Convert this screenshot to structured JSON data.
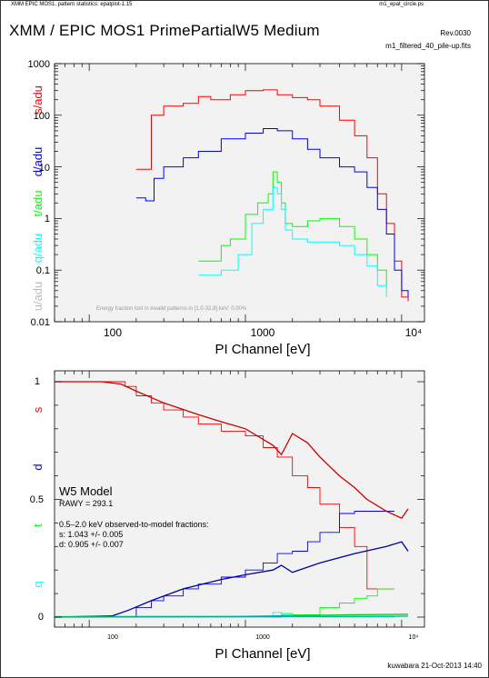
{
  "header": {
    "left": "XMM EPIC MOS1, pattern statistics: epatplot-1.15",
    "right": "m1_epat_circle.ps"
  },
  "title": "XMM / EPIC MOS1 PrimePartialW5 Medium",
  "revision": "Rev.0030",
  "filename": "m1_filtered_40_pile-up.fits",
  "footer": "kuwabara 21-Oct-2013 14:40",
  "colors": {
    "s": "#ff0000",
    "d": "#0000ff",
    "t": "#00ff00",
    "q": "#00ffff",
    "u": "#bbbbbb",
    "model_s": "#cc0000",
    "model_d": "#000099",
    "model_t": "#00cc00",
    "model_q": "#00aaaa",
    "panel_bg": "#f2f2f2"
  },
  "top_panel": {
    "y_labels": [
      "s/adu",
      "d/adu",
      "t/adu",
      "q/adu",
      "u/adu"
    ],
    "y_ticks": [
      "1000",
      "100",
      "10",
      "1",
      "0.1",
      "0.01"
    ],
    "x_ticks": [
      "100",
      "1000",
      "10⁴"
    ],
    "xlabel": "PI Channel [eV]",
    "annotation": "Energy fraction lost in invalid patterns in [1.0-32.8] keV:  0.00%"
  },
  "bottom_panel": {
    "y_labels": [
      "s",
      "d",
      "t",
      "q"
    ],
    "y_ticks": [
      "1",
      "0.5",
      "0"
    ],
    "x_ticks": [
      "100",
      "1000",
      "10⁴"
    ],
    "xlabel": "PI Channel [eV]",
    "model_title": "W5 Model",
    "rawy": "RAWY = 293.1",
    "fraction_title": "0.5–2.0 keV observed-to-model fractions:",
    "fraction_s": "s: 1.043 +/- 0.005",
    "fraction_d": "d: 0.905 +/- 0.007"
  },
  "chart_data": [
    {
      "type": "line",
      "xscale": "log",
      "yscale": "log",
      "xlim": [
        60,
        14000
      ],
      "ylim": [
        0.01,
        1000
      ],
      "xlabel": "PI Channel [eV]",
      "series": [
        {
          "name": "s/adu",
          "x": [
            200,
            250,
            300,
            400,
            500,
            600,
            800,
            1000,
            1300,
            1600,
            2000,
            2500,
            3000,
            4000,
            5000,
            6000,
            7000,
            8000,
            9000,
            10000,
            11000
          ],
          "values": [
            9,
            100,
            150,
            170,
            230,
            200,
            250,
            300,
            310,
            250,
            220,
            200,
            150,
            80,
            40,
            15,
            3,
            0.8,
            0.15,
            0.03,
            0.025
          ]
        },
        {
          "name": "d/adu",
          "x": [
            200,
            230,
            260,
            300,
            400,
            500,
            700,
            1000,
            1300,
            1600,
            2000,
            2500,
            3000,
            4000,
            5000,
            6000,
            7000,
            8000,
            9000,
            10000,
            11000
          ],
          "values": [
            2.5,
            2.2,
            6,
            10,
            15,
            20,
            35,
            45,
            55,
            50,
            35,
            22,
            15,
            10,
            8,
            4,
            1.5,
            0.5,
            0.1,
            0.04,
            0.03
          ]
        },
        {
          "name": "t/adu",
          "x": [
            500,
            700,
            800,
            1000,
            1200,
            1400,
            1500,
            1600,
            1700,
            1800,
            2000,
            2500,
            3000,
            4000,
            5000,
            6000,
            7000,
            8000
          ],
          "values": [
            0.15,
            0.3,
            0.4,
            1.2,
            2,
            3,
            8,
            5,
            2,
            0.8,
            0.7,
            0.9,
            1,
            0.7,
            0.4,
            0.2,
            0.1,
            0.05
          ]
        },
        {
          "name": "q/adu",
          "x": [
            500,
            700,
            900,
            1100,
            1300,
            1500,
            1600,
            1700,
            1800,
            2000,
            2500,
            3000,
            4000,
            5000,
            6000,
            7000,
            8000
          ],
          "values": [
            0.08,
            0.1,
            0.2,
            0.8,
            1.5,
            4,
            3,
            1.5,
            0.6,
            0.4,
            0.35,
            0.35,
            0.3,
            0.2,
            0.12,
            0.05,
            0.03
          ]
        }
      ]
    },
    {
      "type": "line",
      "xscale": "log",
      "yscale": "linear",
      "xlim": [
        60,
        14000
      ],
      "ylim": [
        0,
        1.05
      ],
      "xlabel": "PI Channel [eV]",
      "series": [
        {
          "name": "s",
          "x": [
            60,
            130,
            170,
            200,
            250,
            300,
            400,
            500,
            700,
            1000,
            1300,
            1600,
            2000,
            2500,
            3000,
            4000,
            5000,
            6000,
            7000,
            8000,
            9000
          ],
          "values": [
            1.0,
            1.0,
            0.98,
            0.94,
            0.91,
            0.88,
            0.85,
            0.82,
            0.79,
            0.77,
            0.72,
            0.68,
            0.6,
            0.55,
            0.48,
            0.38,
            0.3,
            0.12,
            0.12,
            0.12,
            0.12
          ]
        },
        {
          "name": "d",
          "x": [
            170,
            200,
            250,
            300,
            400,
            500,
            700,
            1000,
            1300,
            1600,
            2000,
            2500,
            3000,
            4000,
            5000,
            6000,
            7000,
            8000,
            9000
          ],
          "values": [
            0.0,
            0.04,
            0.07,
            0.09,
            0.12,
            0.14,
            0.17,
            0.2,
            0.23,
            0.27,
            0.28,
            0.32,
            0.36,
            0.44,
            0.45,
            0.45,
            0.45,
            0.45,
            0.45
          ]
        },
        {
          "name": "t",
          "x": [
            1500,
            1700,
            2000,
            3000,
            4000,
            5000,
            6000,
            7000,
            8000,
            9000
          ],
          "values": [
            0.0,
            0.015,
            0.01,
            0.04,
            0.06,
            0.08,
            0.09,
            0.12,
            0.12,
            0.12
          ]
        },
        {
          "name": "q",
          "x": [
            1300,
            1500,
            1700,
            2000,
            3000,
            5000,
            9000
          ],
          "values": [
            0.0,
            0.02,
            0.01,
            0.005,
            0.0,
            0.0,
            0.0
          ]
        },
        {
          "name": "s model",
          "x": [
            60,
            120,
            160,
            200,
            300,
            500,
            700,
            1000,
            1500,
            1700,
            2000,
            2500,
            3000,
            4000,
            5000,
            6000,
            8000,
            10000,
            11000
          ],
          "values": [
            1.0,
            1.0,
            0.99,
            0.96,
            0.91,
            0.86,
            0.83,
            0.8,
            0.73,
            0.69,
            0.78,
            0.74,
            0.68,
            0.6,
            0.55,
            0.5,
            0.45,
            0.42,
            0.46
          ]
        },
        {
          "name": "d model",
          "x": [
            60,
            140,
            180,
            250,
            400,
            700,
            1000,
            1500,
            1700,
            2000,
            3000,
            5000,
            8000,
            10000,
            11000
          ],
          "values": [
            0.0,
            0.005,
            0.03,
            0.07,
            0.12,
            0.16,
            0.18,
            0.2,
            0.22,
            0.19,
            0.23,
            0.27,
            0.3,
            0.32,
            0.28
          ]
        },
        {
          "name": "t model",
          "x": [
            60,
            1000,
            2000,
            5000,
            11000
          ],
          "values": [
            0.002,
            0.003,
            0.006,
            0.01,
            0.012
          ]
        },
        {
          "name": "q model",
          "x": [
            60,
            1000,
            2000,
            5000,
            11000
          ],
          "values": [
            0.0,
            0.001,
            0.002,
            0.003,
            0.004
          ]
        }
      ]
    }
  ]
}
